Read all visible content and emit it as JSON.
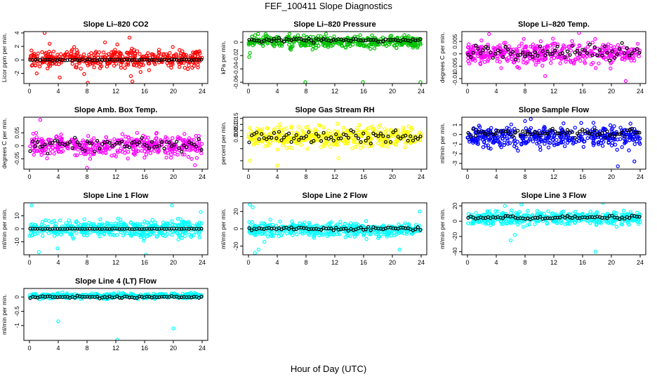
{
  "page": {
    "title": "FEF_100411  Slope Diagnostics",
    "x_axis_label": "Hour of Day (UTC)"
  },
  "chart_data": [
    {
      "type": "scatter",
      "title": "Slope Li–820 CO2",
      "ylabel": "Licor ppm per min.",
      "xlim": [
        0,
        24
      ],
      "ylim": [
        -3.5,
        4.2
      ],
      "yticks": [
        -2,
        0,
        2,
        4
      ],
      "xticks": [
        0,
        4,
        8,
        12,
        16,
        20,
        24
      ],
      "point_color": "#ff0000",
      "series": [
        {
          "role": "all-observations",
          "center": 0.15,
          "spread": 0.9,
          "points": [
            [
              1.0,
              -2.0
            ],
            [
              2.1,
              4.0
            ],
            [
              2.8,
              2.4
            ],
            [
              4.2,
              -2.6
            ],
            [
              8.1,
              -3.4
            ],
            [
              10.5,
              2.6
            ],
            [
              13.9,
              3.3
            ],
            [
              14.1,
              -2.4
            ],
            [
              14.3,
              -3.2
            ],
            [
              7.6,
              -2.1
            ],
            [
              12.2,
              2.3
            ],
            [
              6.2,
              1.9
            ]
          ]
        },
        {
          "role": "hourly-median",
          "center": 0.0,
          "spread": 0.06
        }
      ]
    },
    {
      "type": "scatter",
      "title": "Slope Li–820 Pressure",
      "ylabel": "kPa per min.",
      "xlim": [
        0,
        24
      ],
      "ylim": [
        -0.062,
        0.016
      ],
      "yticks": [
        -0.06,
        -0.04,
        -0.02,
        0.0
      ],
      "xticks": [
        0,
        4,
        8,
        12,
        16,
        20,
        24
      ],
      "point_color": "#00c000",
      "series": [
        {
          "role": "all-observations",
          "center": 0.001,
          "spread": 0.006,
          "points": [
            [
              7.9,
              -0.06
            ],
            [
              15.9,
              -0.06
            ],
            [
              23.9,
              -0.06
            ],
            [
              0.2,
              -0.016
            ],
            [
              0.1,
              -0.022
            ]
          ]
        },
        {
          "role": "hourly-median",
          "center": 0.003,
          "spread": 0.002
        }
      ]
    },
    {
      "type": "scatter",
      "title": "Slope Li–820 Temp.",
      "ylabel": "degrees C per min.",
      "xlim": [
        0,
        24
      ],
      "ylim": [
        -0.012,
        0.009
      ],
      "yticks": [
        -0.01,
        -0.005,
        0.0,
        0.005
      ],
      "xticks": [
        0,
        4,
        8,
        12,
        16,
        20,
        24
      ],
      "point_color": "#ff00ff",
      "series": [
        {
          "role": "all-observations",
          "center": 0.0,
          "spread": 0.0032,
          "points": [
            [
              3.0,
              0.008
            ],
            [
              15.5,
              0.0085
            ],
            [
              22.0,
              -0.011
            ],
            [
              10.8,
              -0.009
            ]
          ]
        },
        {
          "role": "hourly-median",
          "center": 0.0008,
          "spread": 0.0018
        }
      ]
    },
    {
      "type": "scatter",
      "title": "Slope Amb. Box Temp.",
      "ylabel": "degrees C per min.",
      "xlim": [
        0,
        24
      ],
      "ylim": [
        -0.09,
        0.11
      ],
      "yticks": [
        -0.05,
        0.0,
        0.05
      ],
      "xticks": [
        0,
        4,
        8,
        12,
        16,
        20,
        24
      ],
      "point_color": "#ff00ff",
      "series": [
        {
          "role": "all-observations",
          "center": 0.0,
          "spread": 0.028,
          "points": [
            [
              1.5,
              0.1
            ],
            [
              8.0,
              -0.085
            ],
            [
              23.0,
              -0.075
            ]
          ]
        },
        {
          "role": "hourly-median",
          "center": 0.005,
          "spread": 0.016
        }
      ]
    },
    {
      "type": "scatter",
      "title": "Slope Gas Stream RH",
      "ylabel": "percent per min.",
      "xlim": [
        0,
        24
      ],
      "ylim": [
        -0.27,
        0.16
      ],
      "yticks": [
        -0.2,
        -0.1,
        0.0,
        0.05,
        0.1,
        0.15
      ],
      "ytick_labels": [
        "",
        "",
        "0.00",
        "0.05",
        "0.10",
        "0.15"
      ],
      "xticks": [
        0,
        4,
        8,
        12,
        16,
        20,
        24
      ],
      "point_color": "#ffff00",
      "series": [
        {
          "role": "all-observations",
          "center": 0.0,
          "spread": 0.055,
          "points": [
            [
              0.2,
              -0.2
            ],
            [
              4.0,
              -0.24
            ],
            [
              12.5,
              -0.18
            ]
          ]
        },
        {
          "role": "hourly-median",
          "center": 0.0,
          "spread": 0.035
        }
      ]
    },
    {
      "type": "scatter",
      "title": "Slope Sample Flow",
      "ylabel": "ml/min per min.",
      "xlim": [
        0,
        24
      ],
      "ylim": [
        -3.6,
        1.8
      ],
      "yticks": [
        -3,
        -2,
        -1,
        0,
        1
      ],
      "xticks": [
        0,
        4,
        8,
        12,
        16,
        20,
        24
      ],
      "point_color": "#0000ff",
      "series": [
        {
          "role": "all-observations",
          "center": -0.25,
          "spread": 0.75,
          "points": [
            [
              8.0,
              1.4
            ],
            [
              8.8,
              1.6
            ],
            [
              15.8,
              1.2
            ],
            [
              20.9,
              -3.3
            ],
            [
              23.2,
              -2.8
            ]
          ]
        },
        {
          "role": "hourly-median",
          "center": 0.15,
          "spread": 0.25
        }
      ]
    },
    {
      "type": "scatter",
      "title": "Slope Line 1 Flow",
      "ylabel": "ml/min per min.",
      "xlim": [
        0,
        24
      ],
      "ylim": [
        -20,
        20
      ],
      "yticks": [
        -10,
        0,
        10
      ],
      "xticks": [
        0,
        4,
        8,
        12,
        16,
        20,
        24
      ],
      "point_color": "#00ffff",
      "series": [
        {
          "role": "all-observations",
          "center": 0.0,
          "spread": 4.5,
          "points": [
            [
              0.3,
              18
            ],
            [
              1.3,
              -18
            ],
            [
              19.8,
              18
            ],
            [
              16.2,
              -20
            ],
            [
              23.8,
              13
            ],
            [
              3.9,
              -15
            ]
          ]
        },
        {
          "role": "hourly-median",
          "center": 0.0,
          "spread": 0.15
        }
      ]
    },
    {
      "type": "scatter",
      "title": "Slope Line 2 Flow",
      "ylabel": "ml/min per min.",
      "xlim": [
        0,
        24
      ],
      "ylim": [
        -30,
        30
      ],
      "yticks": [
        -20,
        0,
        20
      ],
      "xticks": [
        0,
        4,
        8,
        12,
        16,
        20,
        24
      ],
      "point_color": "#00ffff",
      "series": [
        {
          "role": "all-observations",
          "center": -1.0,
          "spread": 5.5,
          "points": [
            [
              0.2,
              28
            ],
            [
              0.6,
              25
            ],
            [
              0.9,
              -28
            ],
            [
              1.4,
              -24
            ],
            [
              21.0,
              -24
            ],
            [
              23.8,
              20
            ],
            [
              2.2,
              -15
            ]
          ]
        },
        {
          "role": "hourly-median",
          "center": 0.0,
          "spread": 1.5
        }
      ]
    },
    {
      "type": "scatter",
      "title": "Slope Line 3 Flow",
      "ylabel": "ml/min per min.",
      "xlim": [
        0,
        24
      ],
      "ylim": [
        -44,
        24
      ],
      "yticks": [
        -40,
        -20,
        0,
        20
      ],
      "xticks": [
        0,
        4,
        8,
        12,
        16,
        20,
        24
      ],
      "point_color": "#00ffff",
      "series": [
        {
          "role": "all-observations",
          "center": 4.0,
          "spread": 6.0,
          "points": [
            [
              5.2,
              20
            ],
            [
              6.0,
              -25
            ],
            [
              7.5,
              22
            ],
            [
              17.8,
              -40
            ],
            [
              18.8,
              24
            ],
            [
              6.6,
              -18
            ]
          ]
        },
        {
          "role": "hourly-median",
          "center": 5.0,
          "spread": 1.5
        }
      ]
    },
    {
      "type": "scatter",
      "title": "Slope Line 4 (LT) Flow",
      "ylabel": "ml/min per min.",
      "xlim": [
        0,
        24
      ],
      "ylim": [
        -1.52,
        0.3
      ],
      "yticks": [
        -1.0,
        -0.5,
        0.0
      ],
      "xticks": [
        0,
        4,
        8,
        12,
        16,
        20,
        24
      ],
      "point_color": "#00ffff",
      "series": [
        {
          "role": "all-observations",
          "center": 0.04,
          "spread": 0.06,
          "points": [
            [
              4.0,
              -0.85
            ],
            [
              20.0,
              -1.1
            ],
            [
              12.2,
              -1.5
            ]
          ]
        },
        {
          "role": "hourly-median",
          "center": 0.0,
          "spread": 0.025
        }
      ]
    }
  ]
}
